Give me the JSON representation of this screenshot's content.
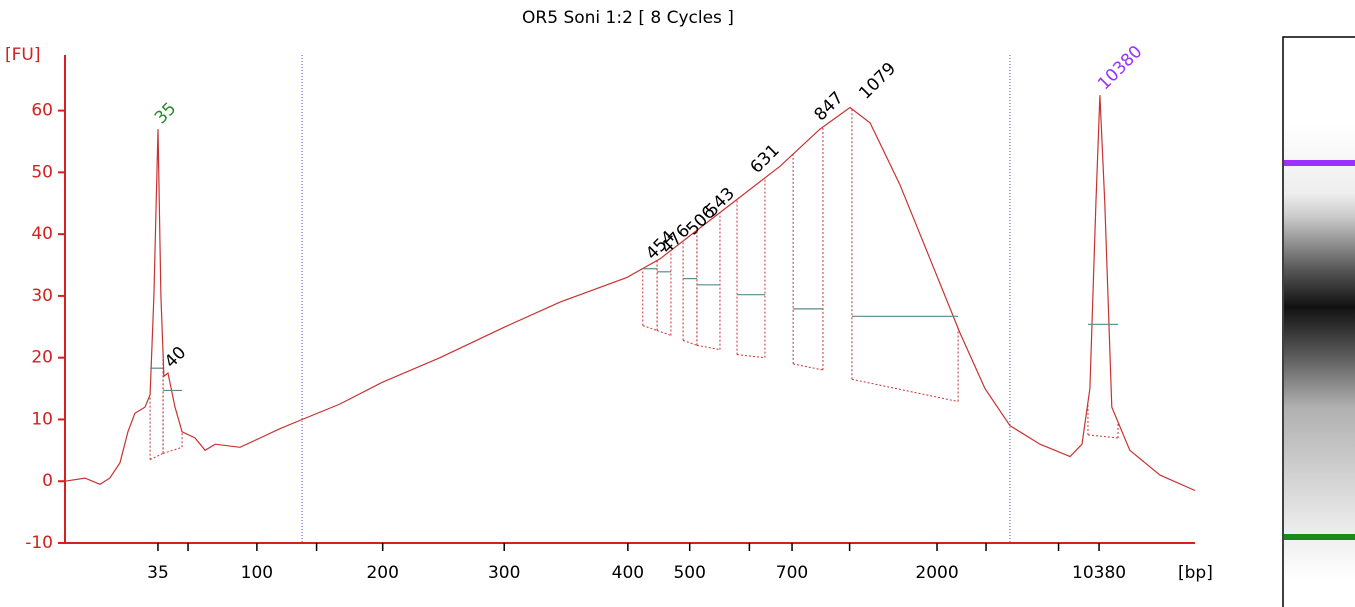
{
  "chart_data": {
    "type": "line",
    "title": "OR5 Soni 1:2  [ 8 Cycles ]",
    "y_label": "[FU]",
    "x_label": "[bp]",
    "color": "#c83232",
    "axis_color": "#d42020",
    "xlim": [
      17.0,
      70.0
    ],
    "ylim": [
      -10,
      69
    ],
    "yticks": [
      -10,
      0,
      10,
      20,
      30,
      40,
      50,
      60
    ],
    "xticks": [
      {
        "value": 21.36,
        "label": "35"
      },
      {
        "value": 22.77,
        "label": null
      },
      {
        "value": 26.0,
        "label": "100"
      },
      {
        "value": 28.8,
        "label": null
      },
      {
        "value": 31.9,
        "label": "200"
      },
      {
        "value": 37.6,
        "label": "300"
      },
      {
        "value": 43.4,
        "label": "400"
      },
      {
        "value": 46.3,
        "label": "500"
      },
      {
        "value": 49.1,
        "label": null
      },
      {
        "value": 51.1,
        "label": "700"
      },
      {
        "value": 53.8,
        "label": null
      },
      {
        "value": 57.9,
        "label": "2000"
      },
      {
        "value": 60.2,
        "label": null
      },
      {
        "value": 63.6,
        "label": null
      },
      {
        "value": 65.5,
        "label": "10380"
      }
    ],
    "markers": [
      28.12,
      61.32
    ],
    "x": [
      17.0,
      17.94,
      18.64,
      19.1,
      19.58,
      19.95,
      20.28,
      20.75,
      20.99,
      21.17,
      21.36,
      21.5,
      21.64,
      21.83,
      22.16,
      22.49,
      23.1,
      23.57,
      24.04,
      25.21,
      26.15,
      27.08,
      28.12,
      29.9,
      31.87,
      34.59,
      37.64,
      40.22,
      43.36,
      44.91,
      46.78,
      48.66,
      50.54,
      52.41,
      53.82,
      54.76,
      56.16,
      57.57,
      58.98,
      60.15,
      61.32,
      62.73,
      64.14,
      64.7,
      65.07,
      65.35,
      65.54,
      65.77,
      66.1,
      66.94,
      68.36,
      70.0
    ],
    "values": [
      0,
      0.5,
      -0.5,
      0.5,
      3,
      8,
      11,
      12,
      14,
      30,
      57,
      30,
      17,
      17.5,
      12,
      8,
      7,
      5,
      6,
      5.5,
      7,
      8.5,
      10,
      12.5,
      16,
      20,
      25,
      29,
      33,
      36,
      41,
      46,
      51,
      57,
      60.5,
      58,
      48,
      36,
      24,
      15,
      9,
      6,
      4,
      6,
      15,
      45,
      62.5,
      45,
      12,
      5,
      1,
      -1.5
    ],
    "peaks": [
      {
        "size": 35,
        "x": 21.36,
        "y": 57,
        "color": "#2a8a2a",
        "start": 20.99,
        "end": 21.6,
        "base": [
          3.5,
          4.5
        ],
        "level": 18.3
      },
      {
        "size": 40,
        "x": 21.83,
        "y": 17.5,
        "color": "#000000",
        "start": 21.6,
        "end": 22.49,
        "base": [
          4.5,
          5.5
        ],
        "level": 14.7
      },
      {
        "size": 454,
        "x": 44.4,
        "y": 35,
        "color": "#000000",
        "start": 44.1,
        "end": 44.77,
        "base": [
          25.2,
          24.4
        ],
        "level": 34.4
      },
      {
        "size": 476,
        "x": 45.1,
        "y": 36,
        "color": "#000000",
        "start": 44.77,
        "end": 45.42,
        "base": [
          24.4,
          23.6
        ],
        "level": 33.9
      },
      {
        "size": 506,
        "x": 46.3,
        "y": 39,
        "color": "#000000",
        "start": 45.99,
        "end": 46.64,
        "base": [
          22.8,
          22.0
        ],
        "level": 32.8
      },
      {
        "size": 543,
        "x": 47.2,
        "y": 42,
        "color": "#000000",
        "start": 46.64,
        "end": 47.72,
        "base": [
          22.0,
          21.3
        ],
        "level": 31.8
      },
      {
        "size": 631,
        "x": 49.3,
        "y": 49,
        "color": "#000000",
        "start": 48.52,
        "end": 49.83,
        "base": [
          20.5,
          20.0
        ],
        "level": 30.2
      },
      {
        "size": 847,
        "x": 52.3,
        "y": 57.5,
        "color": "#000000",
        "start": 51.15,
        "end": 52.55,
        "base": [
          19.0,
          18.0
        ],
        "level": 27.9
      },
      {
        "size": 1079,
        "x": 54.4,
        "y": 61,
        "color": "#000000",
        "start": 53.91,
        "end": 58.89,
        "base": [
          16.5,
          12.9
        ],
        "level": 26.7
      },
      {
        "size": 10380,
        "x": 65.6,
        "y": 62.5,
        "color": "#9b30ff",
        "start": 64.98,
        "end": 66.39,
        "base": [
          7.5,
          7.0
        ],
        "level": 25.4
      }
    ]
  }
}
